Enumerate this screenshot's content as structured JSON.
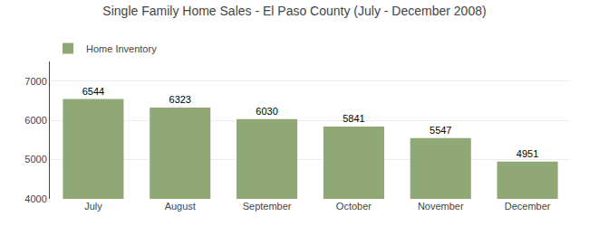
{
  "chart_data": {
    "type": "bar",
    "title": "Single Family Home Sales - El Paso County (July - December 2008)",
    "series": [
      {
        "name": "Home Inventory",
        "color": "#8fa876",
        "values": [
          6544,
          6323,
          6030,
          5841,
          5547,
          4951
        ]
      }
    ],
    "categories": [
      "July",
      "August",
      "September",
      "October",
      "November",
      "December"
    ],
    "ylim": [
      4000,
      7500
    ],
    "yticks": [
      4000,
      5000,
      6000,
      7000
    ],
    "grid": true,
    "legend": "upper left",
    "data_labels": true
  }
}
